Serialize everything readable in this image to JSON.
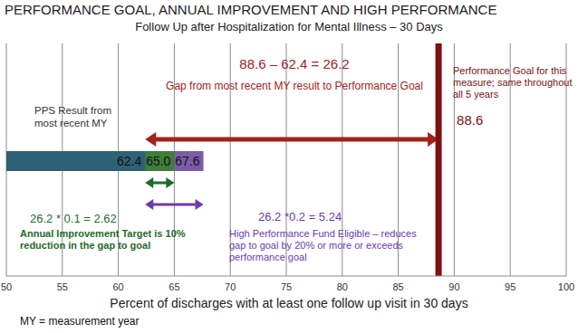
{
  "chart_data": {
    "type": "bar",
    "orientation": "horizontal",
    "stacked": false,
    "title": "PERFORMANCE GOAL, ANNUAL IMPROVEMENT AND HIGH PERFORMANCE",
    "subtitle": "Follow Up after Hospitalization for Mental Illness – 30 Days",
    "x_label": "Percent of discharges with at least one follow up visit in 30 days",
    "footnote": "MY = measurement year",
    "values": [
      62.4,
      65.0,
      67.6
    ],
    "value_labels": [
      "62.4",
      "65.0",
      "67.6"
    ],
    "colors": [
      "#2f6176",
      "#3f7d3b",
      "#7b5ca8"
    ],
    "data_labels": true,
    "tick_labels": "x",
    "xlim": [
      50,
      100
    ],
    "xticks": [
      50,
      55,
      60,
      65,
      70,
      75,
      80,
      85,
      90,
      95,
      100
    ],
    "grid": true,
    "annotations": {
      "result_text": "PPS Result from most recent MY",
      "goal": {
        "value": 88.6,
        "color": "#7b1113",
        "text": "Performance Goal for this measure; same throughout all 5 years"
      },
      "gap": {
        "from": 62.4,
        "to": 88.6,
        "color": "#a3221c",
        "formula": "88.6 – 62.4 = 26.2",
        "text": "Gap from most recent MY result to Performance Goal"
      },
      "annual": {
        "from": 62.4,
        "to": 65.0,
        "color": "#1f6b2a",
        "formula": "26.2 * 0.1 = 2.62",
        "text": "Annual Improvement Target is 10% reduction in the gap to goal"
      },
      "high": {
        "from": 62.4,
        "to": 67.6,
        "color": "#6a3bb0",
        "formula": "26.2 *0.2 = 5.24",
        "text": "High Performance Fund Eligible – reduces gap to goal by 20% or more or exceeds performance goal"
      }
    }
  }
}
